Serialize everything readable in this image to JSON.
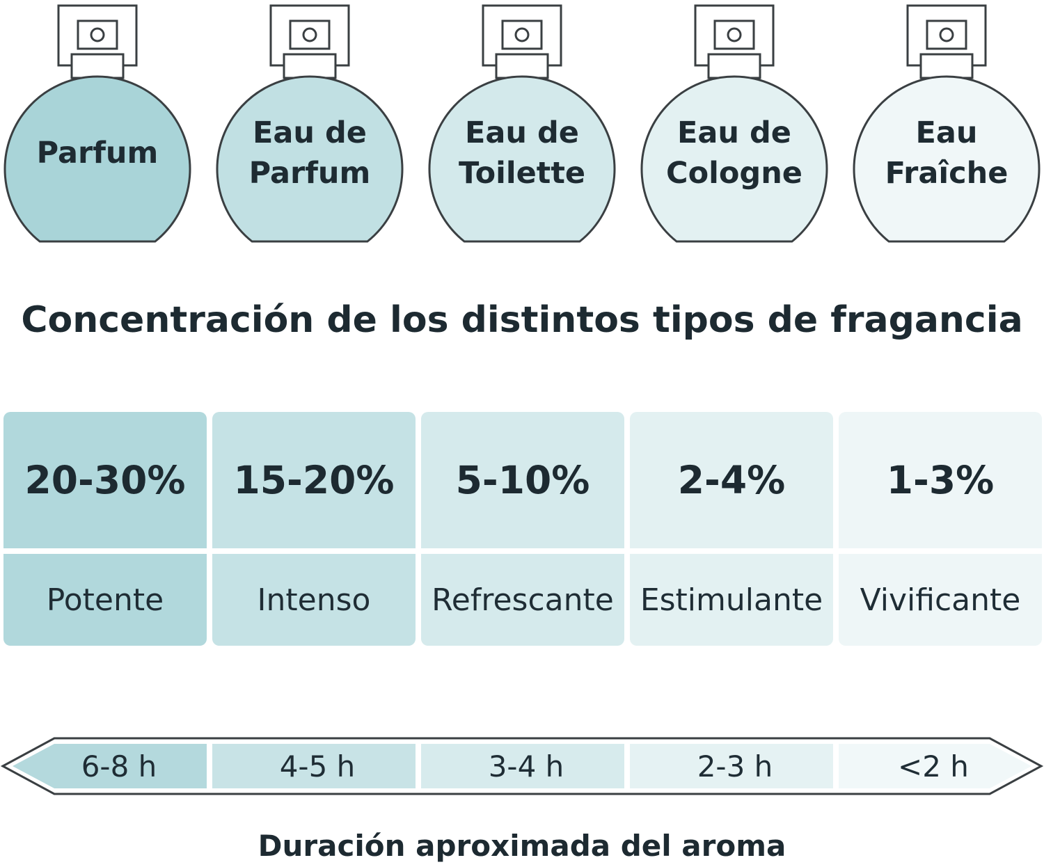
{
  "bottles": [
    {
      "lines": [
        "Parfum"
      ],
      "fill": "#a9d4d8"
    },
    {
      "lines": [
        "Eau de",
        "Parfum"
      ],
      "fill": "#c1e0e3"
    },
    {
      "lines": [
        "Eau de",
        "Toilette"
      ],
      "fill": "#d3e9eb"
    },
    {
      "lines": [
        "Eau de",
        "Cologne"
      ],
      "fill": "#e3f1f2"
    },
    {
      "lines": [
        "Eau",
        "Fraîche"
      ],
      "fill": "#f0f7f8"
    }
  ],
  "title": "Concentración de los distintos tipos de fragancia",
  "concentrations": [
    {
      "value": "20-30%",
      "descriptor": "Potente",
      "fill": "#b1d8dc"
    },
    {
      "value": "15-20%",
      "descriptor": "Intenso",
      "fill": "#c5e2e5"
    },
    {
      "value": "5-10%",
      "descriptor": "Refrescante",
      "fill": "#d5eaec"
    },
    {
      "value": "2-4%",
      "descriptor": "Estimulante",
      "fill": "#e3f1f2"
    },
    {
      "value": "1-3%",
      "descriptor": "Vivificante",
      "fill": "#eef6f7"
    }
  ],
  "durations": [
    {
      "label": "6-8 h",
      "fill": "#b4d9dd"
    },
    {
      "label": "4-5 h",
      "fill": "#c8e3e6"
    },
    {
      "label": "3-4 h",
      "fill": "#d7ebed"
    },
    {
      "label": "2-3 h",
      "fill": "#e5f2f3"
    },
    {
      "label": "<2 h",
      "fill": "#f1f8f9"
    }
  ],
  "duration_caption": "Duración aproximada del aroma",
  "colors": {
    "outline": "#3a3f42",
    "text": "#1d2a31",
    "background": "#ffffff"
  }
}
